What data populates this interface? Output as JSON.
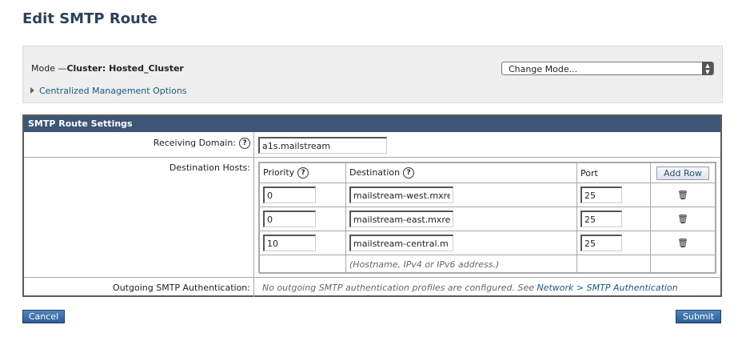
{
  "page": {
    "title": "Edit SMTP Route"
  },
  "mode": {
    "label": "Mode —",
    "value": "Cluster: Hosted_Cluster",
    "change_mode": "Change Mode...",
    "cm_options": "Centralized Management Options"
  },
  "settings": {
    "header": "SMTP Route Settings",
    "receiving_domain_label": "Receiving Domain:",
    "receiving_domain_value": "a1s.mailstream",
    "destination_hosts_label": "Destination Hosts:",
    "columns": {
      "priority": "Priority",
      "destination": "Destination",
      "port": "Port",
      "add_row": "Add Row"
    },
    "hosts": [
      {
        "priority": "0",
        "destination": "mailstream-west.mxre",
        "port": "25"
      },
      {
        "priority": "0",
        "destination": "mailstream-east.mxrec",
        "port": "25"
      },
      {
        "priority": "10",
        "destination": "mailstream-central.m",
        "port": "25"
      }
    ],
    "hint": "(Hostname, IPv4 or IPv6 address.)",
    "outgoing_auth_label": "Outgoing SMTP Authentication:",
    "outgoing_auth_text": "No outgoing SMTP authentication profiles are configured. See ",
    "outgoing_auth_link": "Network > SMTP Authentication"
  },
  "buttons": {
    "cancel": "Cancel",
    "submit": "Submit"
  },
  "help_glyph": "?",
  "trash_glyph": "🗑"
}
